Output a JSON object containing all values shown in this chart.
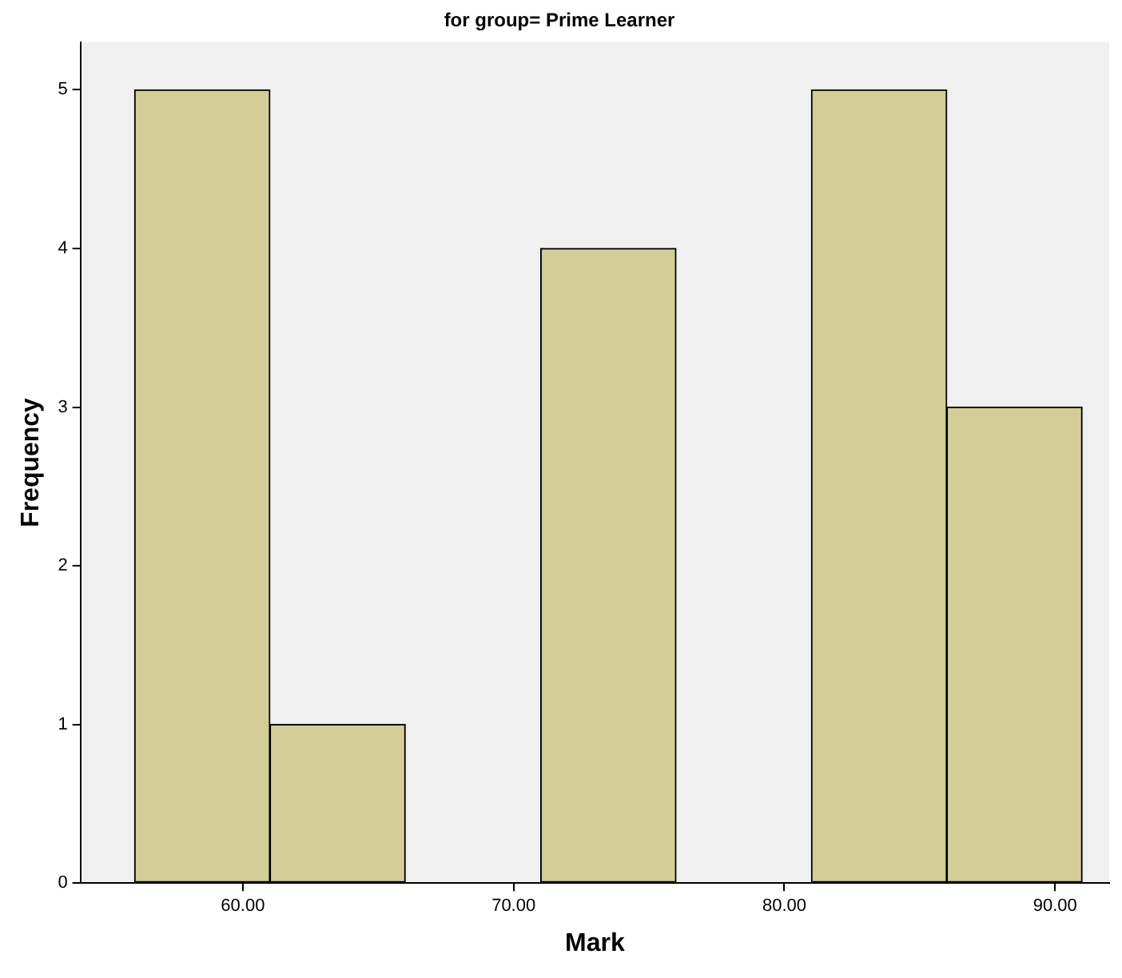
{
  "chart_data": {
    "type": "histogram",
    "title": "for group= Prime Learner",
    "xlabel": "Mark",
    "ylabel": "Frequency",
    "bins": [
      56,
      61,
      66,
      71,
      76,
      81,
      86,
      91
    ],
    "values": [
      5,
      1,
      0,
      4,
      0,
      5,
      3
    ],
    "color": "#d3ce97",
    "xlim": [
      54,
      92
    ],
    "xticks": [
      {
        "value": 60,
        "label": "60.00"
      },
      {
        "value": 70,
        "label": "70.00"
      },
      {
        "value": 80,
        "label": "80.00"
      },
      {
        "value": 90,
        "label": "90.00"
      }
    ],
    "ylim": [
      0,
      5.3
    ],
    "yticks": [
      0,
      1,
      2,
      3,
      4,
      5
    ],
    "grid": false,
    "legend": false
  }
}
